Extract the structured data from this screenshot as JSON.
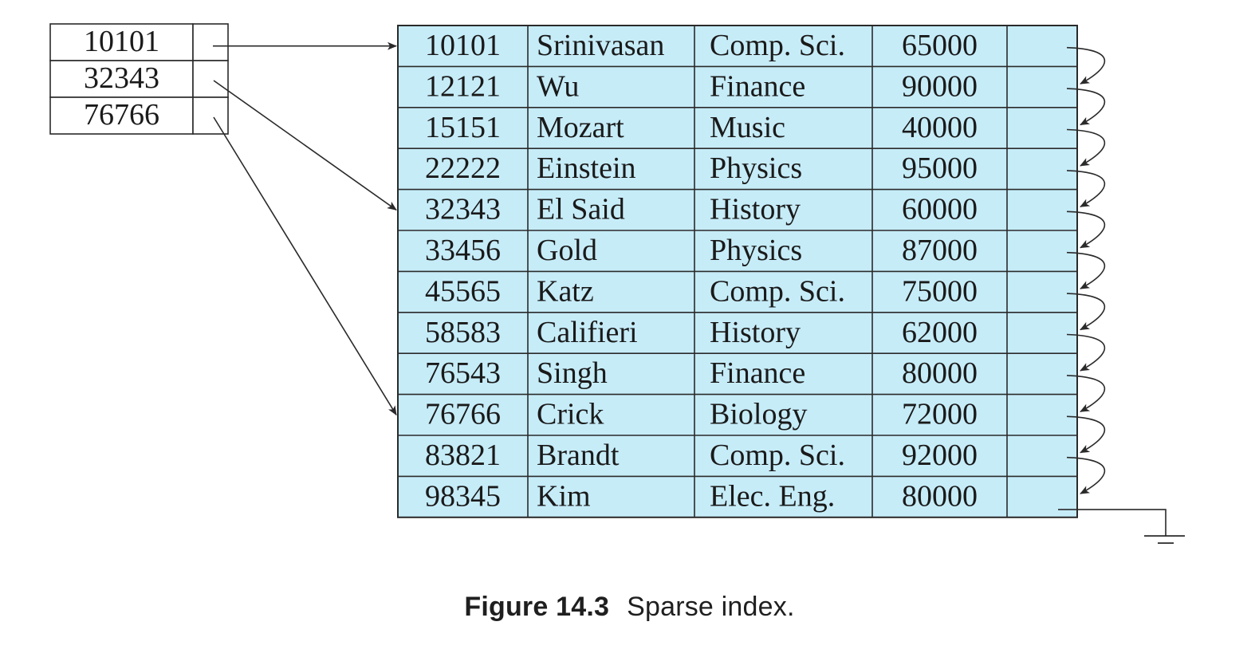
{
  "index_entries": [
    {
      "key": "10101",
      "target_row": 0
    },
    {
      "key": "32343",
      "target_row": 4
    },
    {
      "key": "76766",
      "target_row": 9
    }
  ],
  "records": [
    [
      "10101",
      "Srinivasan",
      "Comp. Sci.",
      "65000"
    ],
    [
      "12121",
      "Wu",
      "Finance",
      "90000"
    ],
    [
      "15151",
      "Mozart",
      "Music",
      "40000"
    ],
    [
      "22222",
      "Einstein",
      "Physics",
      "95000"
    ],
    [
      "32343",
      "El Said",
      "History",
      "60000"
    ],
    [
      "33456",
      "Gold",
      "Physics",
      "87000"
    ],
    [
      "45565",
      "Katz",
      "Comp. Sci.",
      "75000"
    ],
    [
      "58583",
      "Califieri",
      "History",
      "62000"
    ],
    [
      "76543",
      "Singh",
      "Finance",
      "80000"
    ],
    [
      "76766",
      "Crick",
      "Biology",
      "72000"
    ],
    [
      "83821",
      "Brandt",
      "Comp. Sci.",
      "92000"
    ],
    [
      "98345",
      "Kim",
      "Elec. Eng.",
      "80000"
    ]
  ],
  "colors": {
    "record_fill": "#c6ecf8",
    "line": "#2a2a2a",
    "text": "#1a1a1a"
  },
  "caption": {
    "label": "Figure 14.3",
    "text": "Sparse index."
  }
}
